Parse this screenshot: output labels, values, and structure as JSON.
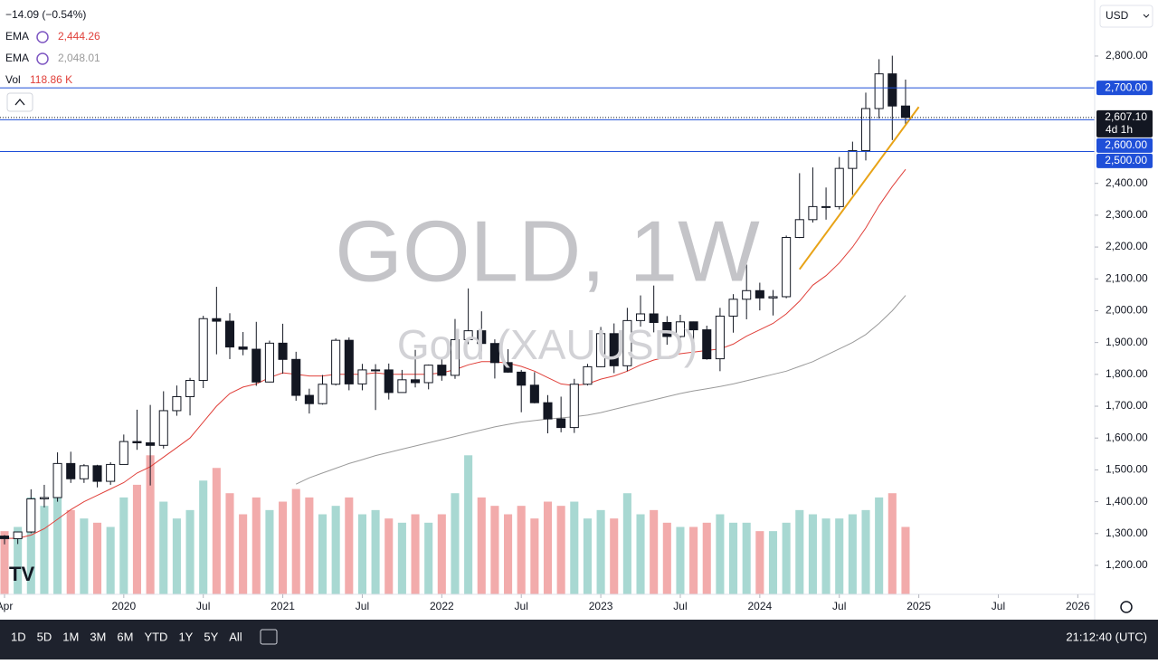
{
  "chart_data": {
    "type": "candlestick",
    "title": "GOLD, 1W",
    "subtitle": "Gold (XAUUSD)",
    "currency": "USD",
    "change": "−14.09 (−0.54%)",
    "legend": [
      {
        "name": "EMA",
        "value": "2,444.26",
        "color": "#e0403a"
      },
      {
        "name": "EMA",
        "value": "2,048.01",
        "color": "#9a9a9a"
      },
      {
        "name": "Vol",
        "value": "118.86 K",
        "color": "#e0403a"
      }
    ],
    "x": [
      "2019-04",
      "2019-05",
      "2019-06",
      "2019-07",
      "2019-08",
      "2019-09",
      "2019-10",
      "2019-11",
      "2019-12",
      "2020-01",
      "2020-02",
      "2020-03",
      "2020-04",
      "2020-05",
      "2020-06",
      "2020-07",
      "2020-08",
      "2020-09",
      "2020-10",
      "2020-11",
      "2020-12",
      "2021-01",
      "2021-02",
      "2021-03",
      "2021-04",
      "2021-05",
      "2021-06",
      "2021-07",
      "2021-08",
      "2021-09",
      "2021-10",
      "2021-11",
      "2021-12",
      "2022-01",
      "2022-02",
      "2022-03",
      "2022-04",
      "2022-05",
      "2022-06",
      "2022-07",
      "2022-08",
      "2022-09",
      "2022-10",
      "2022-11",
      "2022-12",
      "2023-01",
      "2023-02",
      "2023-03",
      "2023-04",
      "2023-05",
      "2023-06",
      "2023-07",
      "2023-08",
      "2023-09",
      "2023-10",
      "2023-11",
      "2023-12",
      "2024-01",
      "2024-02",
      "2024-03",
      "2024-04",
      "2024-05",
      "2024-06",
      "2024-07",
      "2024-08",
      "2024-09",
      "2024-10",
      "2024-11",
      "2024-12"
    ],
    "open": [
      1292,
      1284,
      1305,
      1409,
      1413,
      1520,
      1472,
      1513,
      1464,
      1517,
      1589,
      1585,
      1577,
      1686,
      1730,
      1781,
      1975,
      1967,
      1886,
      1879,
      1776,
      1898,
      1847,
      1734,
      1708,
      1769,
      1907,
      1770,
      1814,
      1814,
      1743,
      1783,
      1774,
      1829,
      1797,
      1909,
      1937,
      1897,
      1837,
      1807,
      1766,
      1711,
      1660,
      1633,
      1769,
      1824,
      1928,
      1827,
      1969,
      1990,
      1963,
      1919,
      1965,
      1940,
      1849,
      1983,
      2036,
      2063,
      2040,
      2044,
      2230,
      2286,
      2327,
      2327,
      2447,
      2503,
      2635,
      2744,
      2643
    ],
    "high": [
      1295,
      1306,
      1439,
      1453,
      1555,
      1557,
      1518,
      1516,
      1524,
      1611,
      1689,
      1704,
      1747,
      1765,
      1789,
      1984,
      2075,
      1992,
      1933,
      1965,
      1906,
      1959,
      1871,
      1755,
      1798,
      1913,
      1916,
      1833,
      1832,
      1834,
      1814,
      1877,
      1831,
      1853,
      1974,
      2070,
      1998,
      1910,
      1879,
      1814,
      1807,
      1735,
      1730,
      1786,
      1833,
      1949,
      1960,
      2009,
      2048,
      2079,
      1983,
      1987,
      1966,
      1953,
      2009,
      2052,
      2145,
      2088,
      2065,
      2236,
      2432,
      2450,
      2387,
      2483,
      2531,
      2685,
      2790,
      2801,
      2726
    ],
    "low": [
      1266,
      1267,
      1301,
      1382,
      1400,
      1459,
      1459,
      1445,
      1453,
      1517,
      1563,
      1451,
      1567,
      1670,
      1671,
      1757,
      1863,
      1848,
      1860,
      1764,
      1775,
      1802,
      1717,
      1677,
      1705,
      1765,
      1750,
      1750,
      1688,
      1721,
      1746,
      1759,
      1753,
      1780,
      1786,
      1895,
      1872,
      1787,
      1805,
      1681,
      1709,
      1615,
      1618,
      1616,
      1765,
      1823,
      1804,
      1810,
      1950,
      1932,
      1893,
      1903,
      1884,
      1846,
      1810,
      1931,
      1973,
      2001,
      1985,
      2039,
      2228,
      2277,
      2286,
      2318,
      2364,
      2472,
      2604,
      2536,
      2583
    ],
    "close": [
      1284,
      1305,
      1409,
      1413,
      1520,
      1472,
      1513,
      1464,
      1517,
      1589,
      1585,
      1577,
      1686,
      1730,
      1781,
      1975,
      1967,
      1886,
      1879,
      1776,
      1898,
      1847,
      1734,
      1708,
      1769,
      1907,
      1770,
      1814,
      1814,
      1743,
      1783,
      1774,
      1829,
      1797,
      1909,
      1937,
      1897,
      1837,
      1807,
      1766,
      1711,
      1660,
      1633,
      1769,
      1824,
      1928,
      1827,
      1969,
      1990,
      1963,
      1919,
      1965,
      1940,
      1849,
      1983,
      2036,
      2063,
      2040,
      2044,
      2230,
      2286,
      2327,
      2327,
      2447,
      2503,
      2635,
      2744,
      2643,
      2607
    ],
    "volume": [
      150,
      160,
      230,
      210,
      260,
      200,
      180,
      170,
      160,
      230,
      260,
      330,
      220,
      180,
      200,
      270,
      300,
      240,
      190,
      230,
      200,
      220,
      250,
      230,
      190,
      210,
      230,
      190,
      200,
      180,
      170,
      190,
      170,
      190,
      240,
      330,
      230,
      210,
      190,
      210,
      180,
      220,
      210,
      220,
      180,
      200,
      180,
      240,
      190,
      200,
      170,
      160,
      160,
      170,
      190,
      170,
      170,
      150,
      150,
      170,
      200,
      190,
      180,
      180,
      190,
      200,
      230,
      240,
      160
    ],
    "volume_ylim": [
      0,
      380
    ],
    "candle_color": "#131722",
    "volume_up_color": "#a8d8d2",
    "volume_down_color": "#f2abab",
    "series": [
      {
        "name": "EMA",
        "color": "#e0403a",
        "values": [
          1285,
          1285,
          1295,
          1315,
          1345,
          1375,
          1400,
          1420,
          1440,
          1460,
          1490,
          1510,
          1540,
          1570,
          1600,
          1650,
          1700,
          1740,
          1760,
          1770,
          1790,
          1805,
          1800,
          1795,
          1795,
          1800,
          1800,
          1800,
          1805,
          1800,
          1800,
          1800,
          1800,
          1805,
          1815,
          1830,
          1840,
          1840,
          1835,
          1825,
          1810,
          1790,
          1770,
          1765,
          1770,
          1785,
          1795,
          1810,
          1830,
          1845,
          1855,
          1865,
          1870,
          1875,
          1880,
          1895,
          1920,
          1940,
          1960,
          1990,
          2030,
          2080,
          2110,
          2150,
          2200,
          2260,
          2330,
          2390,
          2444
        ]
      },
      {
        "name": "EMA",
        "color": "#9a9a9a",
        "values": [
          null,
          null,
          null,
          null,
          null,
          null,
          null,
          null,
          null,
          null,
          null,
          null,
          null,
          null,
          null,
          null,
          null,
          null,
          null,
          null,
          null,
          null,
          1455,
          1475,
          1490,
          1505,
          1520,
          1532,
          1545,
          1555,
          1565,
          1575,
          1585,
          1595,
          1605,
          1615,
          1625,
          1635,
          1643,
          1650,
          1655,
          1660,
          1663,
          1667,
          1672,
          1680,
          1690,
          1700,
          1710,
          1720,
          1730,
          1740,
          1748,
          1755,
          1762,
          1770,
          1780,
          1790,
          1800,
          1810,
          1825,
          1840,
          1860,
          1880,
          1900,
          1925,
          1960,
          2000,
          2048
        ]
      }
    ],
    "trendline": {
      "color": "#e8a317",
      "x": [
        "2024-04",
        "2025-01"
      ],
      "values": [
        2130,
        2640
      ]
    },
    "price_lines": [
      {
        "value": 2700,
        "label": "2,700.00",
        "color": "#1f4fd8"
      },
      {
        "value": 2600,
        "label": "2,600.00",
        "color": "#1f4fd8"
      },
      {
        "value": 2500,
        "label": "2,500.00",
        "color": "#1f4fd8"
      }
    ],
    "last_price": {
      "value": 2607.1,
      "label": "2,607.10",
      "countdown": "4d 1h",
      "color": "#131722"
    },
    "xlim": [
      "2019-04",
      "2026-02"
    ],
    "xticks": [
      {
        "value": "2019-04",
        "label": "Apr"
      },
      {
        "value": "2020-01",
        "label": "2020"
      },
      {
        "value": "2020-07",
        "label": "Jul"
      },
      {
        "value": "2021-01",
        "label": "2021"
      },
      {
        "value": "2021-07",
        "label": "Jul"
      },
      {
        "value": "2022-01",
        "label": "2022"
      },
      {
        "value": "2022-07",
        "label": "Jul"
      },
      {
        "value": "2023-01",
        "label": "2023"
      },
      {
        "value": "2023-07",
        "label": "Jul"
      },
      {
        "value": "2024-01",
        "label": "2024"
      },
      {
        "value": "2024-07",
        "label": "Jul"
      },
      {
        "value": "2025-01",
        "label": "2025"
      },
      {
        "value": "2025-07",
        "label": "Jul"
      },
      {
        "value": "2026-01",
        "label": "2026"
      }
    ],
    "ylim": [
      1109,
      2976
    ],
    "yticks": [
      {
        "value": 1200,
        "label": "1,200.00"
      },
      {
        "value": 1300,
        "label": "1,300.00"
      },
      {
        "value": 1400,
        "label": "1,400.00"
      },
      {
        "value": 1500,
        "label": "1,500.00"
      },
      {
        "value": 1600,
        "label": "1,600.00"
      },
      {
        "value": 1700,
        "label": "1,700.00"
      },
      {
        "value": 1800,
        "label": "1,800.00"
      },
      {
        "value": 1900,
        "label": "1,900.00"
      },
      {
        "value": 2000,
        "label": "2,000.00"
      },
      {
        "value": 2100,
        "label": "2,100.00"
      },
      {
        "value": 2200,
        "label": "2,200.00"
      },
      {
        "value": 2300,
        "label": "2,300.00"
      },
      {
        "value": 2400,
        "label": "2,400.00"
      },
      {
        "value": 2800,
        "label": "2,800.00"
      }
    ],
    "timeframes": [
      "1D",
      "5D",
      "1M",
      "3M",
      "6M",
      "YTD",
      "1Y",
      "5Y",
      "All"
    ],
    "clock": "21:12:40 (UTC)"
  }
}
